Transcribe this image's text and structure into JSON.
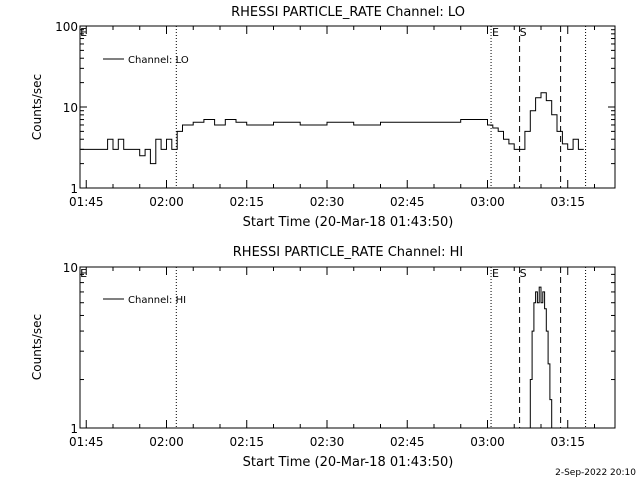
{
  "x_axis": {
    "label": "Start Time (20-Mar-18 01:43:50)",
    "range": [
      "01:43:50",
      "03:23:50"
    ],
    "ticks": [
      "01:45",
      "02:00",
      "02:15",
      "02:30",
      "02:45",
      "03:00",
      "03:15"
    ]
  },
  "footer": {
    "date": "2-Sep-2022 20:10"
  },
  "markers": {
    "dotted": [
      "02:01:50",
      "03:00:40",
      "03:18:20"
    ],
    "dashed": [
      "03:06:00",
      "03:13:40"
    ],
    "flags": [
      {
        "label": "E",
        "time": "01:44:30"
      },
      {
        "label": "E",
        "time": "03:01:30"
      },
      {
        "label": "S",
        "time": "03:06:40"
      }
    ]
  },
  "chart_data": [
    {
      "type": "line",
      "title": "RHESSI PARTICLE_RATE Channel: LO",
      "xlabel": "Start Time (20-Mar-18 01:43:50)",
      "ylabel": "Counts/sec",
      "yscale": "log",
      "ylim": [
        1,
        100
      ],
      "yticks": [
        "1",
        "10",
        "100"
      ],
      "legend": "top-left",
      "series": [
        {
          "name": "Channel: LO",
          "x": [
            "01:44:00",
            "01:46:00",
            "01:48:00",
            "01:49:00",
            "01:50:00",
            "01:51:00",
            "01:52:00",
            "01:53:00",
            "01:54:00",
            "01:55:00",
            "01:56:00",
            "01:57:00",
            "01:58:00",
            "01:59:00",
            "02:00:00",
            "02:01:00",
            "02:02:00",
            "02:03:00",
            "02:05:00",
            "02:07:00",
            "02:09:00",
            "02:11:00",
            "02:13:00",
            "02:15:00",
            "02:20:00",
            "02:25:00",
            "02:30:00",
            "02:35:00",
            "02:40:00",
            "02:45:00",
            "02:50:00",
            "02:55:00",
            "03:00:00",
            "03:01:00",
            "03:02:00",
            "03:03:00",
            "03:04:00",
            "03:05:00",
            "03:06:00",
            "03:07:00",
            "03:08:00",
            "03:09:00",
            "03:10:00",
            "03:11:00",
            "03:12:00",
            "03:13:00",
            "03:14:00",
            "03:15:00",
            "03:16:00",
            "03:17:00",
            "03:18:00"
          ],
          "y": [
            3,
            3,
            3,
            4,
            3,
            4,
            3,
            3,
            3,
            2.5,
            3,
            2,
            4,
            3,
            4,
            3,
            5,
            6,
            6.5,
            7,
            6,
            7,
            6.5,
            6,
            6.5,
            6,
            6.5,
            6,
            6.5,
            6.5,
            6.5,
            7,
            6,
            5.5,
            5,
            4,
            3.5,
            3,
            3,
            5,
            9,
            13,
            15,
            12,
            8,
            5,
            3.5,
            3,
            4,
            3,
            3
          ]
        }
      ]
    },
    {
      "type": "line",
      "title": "RHESSI PARTICLE_RATE Channel: HI",
      "xlabel": "Start Time (20-Mar-18 01:43:50)",
      "ylabel": "Counts/sec",
      "yscale": "log",
      "ylim": [
        1,
        10
      ],
      "yticks": [
        "1",
        "10"
      ],
      "legend": "top-left",
      "series": [
        {
          "name": "Channel: HI",
          "x": [
            "03:07:40",
            "03:08:00",
            "03:08:20",
            "03:08:40",
            "03:09:00",
            "03:09:20",
            "03:09:40",
            "03:10:00",
            "03:10:20",
            "03:10:40",
            "03:11:00",
            "03:11:20",
            "03:11:40",
            "03:12:00"
          ],
          "y": [
            1,
            2,
            4,
            6,
            7,
            6,
            7.5,
            6,
            7,
            5.5,
            4,
            2.5,
            1.5,
            1
          ]
        }
      ]
    }
  ]
}
